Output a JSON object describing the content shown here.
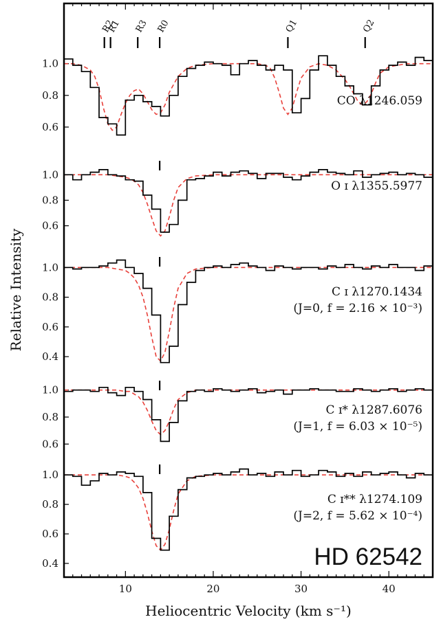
{
  "chart_data": {
    "type": "line",
    "star": "HD 62542",
    "xlabel": "Heliocentric Velocity (km s⁻¹)",
    "ylabel": "Relative Intensity",
    "xlim": [
      3,
      45
    ],
    "xticks": [
      10,
      20,
      30,
      40
    ],
    "grid": false,
    "series_legend": {
      "observed": "histogram (black)",
      "model": "dashed fit (red)"
    },
    "colors": {
      "observed": "#000000",
      "model": "#e8403a"
    },
    "panels": [
      {
        "label": "CO λ1246.059",
        "sublabel": "",
        "ylim": [
          0.5,
          1.35
        ],
        "yticks": [
          0.6,
          0.8,
          1.0
        ],
        "markers": [
          {
            "label": "R2",
            "x": 7.6
          },
          {
            "label": "R1",
            "x": 8.3
          },
          {
            "label": "R3",
            "x": 11.4
          },
          {
            "label": "R0",
            "x": 13.9
          },
          {
            "label": "Q1",
            "x": 28.5
          },
          {
            "label": "Q2",
            "x": 37.3
          }
        ],
        "observed": {
          "x": [
            3.0,
            4.0,
            5.0,
            6.0,
            7.0,
            8.0,
            9.0,
            10.0,
            11.0,
            12.0,
            13.0,
            14.0,
            15.0,
            16.0,
            17.0,
            18.0,
            19.0,
            20.0,
            21.0,
            22.0,
            23.0,
            24.0,
            25.0,
            26.0,
            27.0,
            28.0,
            29.0,
            30.0,
            31.0,
            32.0,
            33.0,
            34.0,
            35.0,
            36.0,
            37.0,
            38.0,
            39.0,
            40.0,
            41.0,
            42.0,
            43.0,
            44.0
          ],
          "y": [
            1.03,
            0.99,
            0.95,
            0.85,
            0.66,
            0.62,
            0.55,
            0.77,
            0.8,
            0.76,
            0.73,
            0.67,
            0.8,
            0.92,
            0.97,
            0.99,
            1.01,
            1.0,
            0.99,
            0.93,
            1.0,
            1.02,
            0.99,
            0.96,
            0.99,
            0.96,
            0.69,
            0.78,
            0.96,
            1.05,
            0.99,
            0.92,
            0.86,
            0.81,
            0.74,
            0.86,
            0.96,
            0.99,
            1.01,
            0.99,
            1.04,
            1.02
          ]
        },
        "model": {
          "x": [
            3,
            4,
            5,
            6,
            6.5,
            7,
            7.5,
            8,
            8.5,
            9,
            9.5,
            10,
            10.5,
            11,
            11.5,
            12,
            12.5,
            13,
            13.5,
            14,
            14.5,
            15,
            16,
            17,
            18,
            20,
            22,
            24,
            25,
            26,
            26.5,
            27,
            27.5,
            28,
            28.5,
            29,
            29.5,
            30,
            31,
            32,
            33,
            34,
            35,
            35.5,
            36,
            36.5,
            37,
            37.5,
            38,
            38.5,
            39,
            40,
            41,
            42,
            43,
            44,
            45
          ],
          "y": [
            1.0,
            1.0,
            0.99,
            0.96,
            0.92,
            0.84,
            0.72,
            0.62,
            0.58,
            0.6,
            0.68,
            0.75,
            0.8,
            0.83,
            0.84,
            0.81,
            0.76,
            0.71,
            0.68,
            0.69,
            0.74,
            0.82,
            0.92,
            0.97,
            0.99,
            1.0,
            1.0,
            1.0,
            1.0,
            0.99,
            0.97,
            0.91,
            0.82,
            0.72,
            0.68,
            0.72,
            0.82,
            0.91,
            0.98,
            1.0,
            0.99,
            0.96,
            0.9,
            0.86,
            0.81,
            0.76,
            0.74,
            0.76,
            0.81,
            0.88,
            0.94,
            0.98,
            0.99,
            1.0,
            1.0,
            1.0,
            1.0
          ]
        }
      },
      {
        "label": "O ɪ λ1355.5977",
        "sublabel": "",
        "ylim": [
          0.42,
          1.12
        ],
        "yticks": [
          0.6,
          0.8,
          1.0
        ],
        "markers": [
          {
            "label": "",
            "x": 13.9
          }
        ],
        "observed": {
          "x": [
            3.0,
            4.0,
            5.0,
            6.0,
            7.0,
            8.0,
            9.0,
            10.0,
            11.0,
            12.0,
            13.0,
            14.0,
            15.0,
            16.0,
            17.0,
            18.0,
            19.0,
            20.0,
            21.0,
            22.0,
            23.0,
            24.0,
            25.0,
            26.0,
            27.0,
            28.0,
            29.0,
            30.0,
            31.0,
            32.0,
            33.0,
            34.0,
            35.0,
            36.0,
            37.0,
            38.0,
            39.0,
            40.0,
            41.0,
            42.0,
            43.0,
            44.0
          ],
          "y": [
            1.0,
            0.96,
            1.0,
            1.02,
            1.04,
            1.0,
            0.99,
            0.96,
            0.95,
            0.84,
            0.73,
            0.55,
            0.61,
            0.8,
            0.96,
            0.97,
            0.99,
            1.02,
            0.99,
            1.02,
            1.03,
            1.01,
            0.97,
            1.01,
            1.01,
            0.98,
            0.96,
            0.99,
            1.02,
            1.04,
            1.02,
            1.01,
            1.0,
            1.03,
            0.98,
            1.0,
            1.01,
            1.02,
            1.0,
            1.01,
            1.0,
            0.98
          ]
        },
        "model": {
          "x": [
            3,
            6,
            8,
            9,
            10,
            10.5,
            11,
            11.5,
            12,
            12.5,
            13,
            13.5,
            14,
            14.5,
            15,
            15.5,
            16,
            17,
            18,
            20,
            25,
            30,
            35,
            40,
            45
          ],
          "y": [
            1.0,
            1.0,
            1.0,
            0.99,
            0.98,
            0.97,
            0.95,
            0.92,
            0.86,
            0.77,
            0.66,
            0.56,
            0.52,
            0.56,
            0.67,
            0.8,
            0.9,
            0.97,
            0.99,
            1.0,
            1.0,
            1.0,
            1.0,
            1.0,
            1.0
          ]
        }
      },
      {
        "label": "C ɪ λ1270.1434",
        "sublabel": "(J=0, f = 2.16 × 10⁻³)",
        "ylim": [
          0.28,
          1.08
        ],
        "yticks": [
          0.4,
          0.6,
          0.8,
          1.0
        ],
        "markers": [
          {
            "label": "",
            "x": 13.9
          }
        ],
        "observed": {
          "x": [
            3.0,
            4.0,
            5.0,
            6.0,
            7.0,
            8.0,
            9.0,
            10.0,
            11.0,
            12.0,
            13.0,
            14.0,
            15.0,
            16.0,
            17.0,
            18.0,
            19.0,
            20.0,
            21.0,
            22.0,
            23.0,
            24.0,
            25.0,
            26.0,
            27.0,
            28.0,
            29.0,
            30.0,
            31.0,
            32.0,
            33.0,
            34.0,
            35.0,
            36.0,
            37.0,
            38.0,
            39.0,
            40.0,
            41.0,
            42.0,
            43.0,
            44.0
          ],
          "y": [
            1.0,
            0.99,
            1.0,
            1.0,
            1.01,
            1.03,
            1.05,
            1.0,
            0.96,
            0.86,
            0.68,
            0.36,
            0.47,
            0.75,
            0.9,
            0.98,
            1.0,
            1.01,
            1.0,
            1.02,
            1.03,
            1.01,
            1.0,
            0.98,
            1.01,
            1.0,
            0.99,
            1.0,
            1.0,
            0.99,
            1.01,
            1.0,
            1.02,
            1.0,
            0.99,
            1.01,
            1.0,
            1.02,
            1.0,
            1.0,
            0.98,
            1.01
          ]
        },
        "model": {
          "x": [
            3,
            6,
            8,
            9,
            10,
            10.5,
            11,
            11.5,
            12,
            12.5,
            13,
            13.5,
            14,
            14.5,
            15,
            15.5,
            16,
            17,
            18,
            20,
            25,
            30,
            35,
            40,
            45
          ],
          "y": [
            1.0,
            1.0,
            1.0,
            0.99,
            0.98,
            0.96,
            0.93,
            0.88,
            0.8,
            0.68,
            0.53,
            0.4,
            0.37,
            0.43,
            0.57,
            0.73,
            0.86,
            0.96,
            0.99,
            1.0,
            1.0,
            1.0,
            1.0,
            1.0,
            1.0
          ]
        }
      },
      {
        "label": "C ɪ* λ1287.6076",
        "sublabel": "(J=1, f = 6.03 × 10⁻⁵)",
        "ylim": [
          0.52,
          1.08
        ],
        "yticks": [
          0.6,
          0.8,
          1.0
        ],
        "markers": [
          {
            "label": "",
            "x": 13.9
          }
        ],
        "observed": {
          "x": [
            3.0,
            4.0,
            5.0,
            6.0,
            7.0,
            8.0,
            9.0,
            10.0,
            11.0,
            12.0,
            13.0,
            14.0,
            15.0,
            16.0,
            17.0,
            18.0,
            19.0,
            20.0,
            21.0,
            22.0,
            23.0,
            24.0,
            25.0,
            26.0,
            27.0,
            28.0,
            29.0,
            30.0,
            31.0,
            32.0,
            33.0,
            34.0,
            35.0,
            36.0,
            37.0,
            38.0,
            39.0,
            40.0,
            41.0,
            42.0,
            43.0,
            44.0
          ],
          "y": [
            0.99,
            1.0,
            1.0,
            0.99,
            1.02,
            0.98,
            0.96,
            1.02,
            0.99,
            0.93,
            0.78,
            0.62,
            0.76,
            0.92,
            0.99,
            1.0,
            0.99,
            1.01,
            1.0,
            0.99,
            1.0,
            1.01,
            0.98,
            0.99,
            1.0,
            0.97,
            1.0,
            1.0,
            1.01,
            1.0,
            1.0,
            0.99,
            0.99,
            1.01,
            1.0,
            0.99,
            1.0,
            1.01,
            0.99,
            1.0,
            1.01,
            1.0
          ]
        },
        "model": {
          "x": [
            3,
            6,
            8,
            9,
            10,
            10.5,
            11,
            11.5,
            12,
            12.5,
            13,
            13.5,
            14,
            14.5,
            15,
            15.5,
            16,
            17,
            18,
            20,
            25,
            30,
            35,
            40,
            45
          ],
          "y": [
            1.0,
            1.0,
            1.0,
            1.0,
            0.99,
            0.99,
            0.97,
            0.95,
            0.91,
            0.85,
            0.77,
            0.7,
            0.67,
            0.7,
            0.77,
            0.86,
            0.93,
            0.98,
            1.0,
            1.0,
            1.0,
            1.0,
            1.0,
            1.0,
            1.0
          ]
        }
      },
      {
        "label": "C ɪ** λ1274.109",
        "sublabel": "(J=2, f = 5.62 × 10⁻⁴)",
        "ylim": [
          0.33,
          1.08
        ],
        "yticks": [
          0.4,
          0.6,
          0.8,
          1.0
        ],
        "markers": [
          {
            "label": "",
            "x": 13.9
          }
        ],
        "observed": {
          "x": [
            3.0,
            4.0,
            5.0,
            6.0,
            7.0,
            8.0,
            9.0,
            10.0,
            11.0,
            12.0,
            13.0,
            14.0,
            15.0,
            16.0,
            17.0,
            18.0,
            19.0,
            20.0,
            21.0,
            22.0,
            23.0,
            24.0,
            25.0,
            26.0,
            27.0,
            28.0,
            29.0,
            30.0,
            31.0,
            32.0,
            33.0,
            34.0,
            35.0,
            36.0,
            37.0,
            38.0,
            39.0,
            40.0,
            41.0,
            42.0,
            43.0,
            44.0
          ],
          "y": [
            1.0,
            0.99,
            0.93,
            0.96,
            1.01,
            1.0,
            1.02,
            1.01,
            0.99,
            0.88,
            0.57,
            0.49,
            0.72,
            0.9,
            0.98,
            0.99,
            1.0,
            1.01,
            1.0,
            1.02,
            1.04,
            1.0,
            1.01,
            0.99,
            1.02,
            1.0,
            1.03,
            0.99,
            1.0,
            1.03,
            1.02,
            0.99,
            1.01,
            0.99,
            1.02,
            1.0,
            1.01,
            1.02,
            1.0,
            0.98,
            1.01,
            1.0
          ]
        },
        "model": {
          "x": [
            3,
            6,
            8,
            9,
            10,
            10.5,
            11,
            11.5,
            12,
            12.5,
            13,
            13.5,
            14,
            14.5,
            15,
            15.5,
            16,
            17,
            18,
            20,
            25,
            30,
            35,
            40,
            45
          ],
          "y": [
            1.0,
            1.0,
            1.0,
            1.0,
            0.99,
            0.98,
            0.95,
            0.91,
            0.84,
            0.74,
            0.62,
            0.52,
            0.49,
            0.53,
            0.63,
            0.76,
            0.87,
            0.96,
            0.99,
            1.0,
            1.0,
            1.0,
            1.0,
            1.0,
            1.0
          ]
        }
      }
    ]
  }
}
